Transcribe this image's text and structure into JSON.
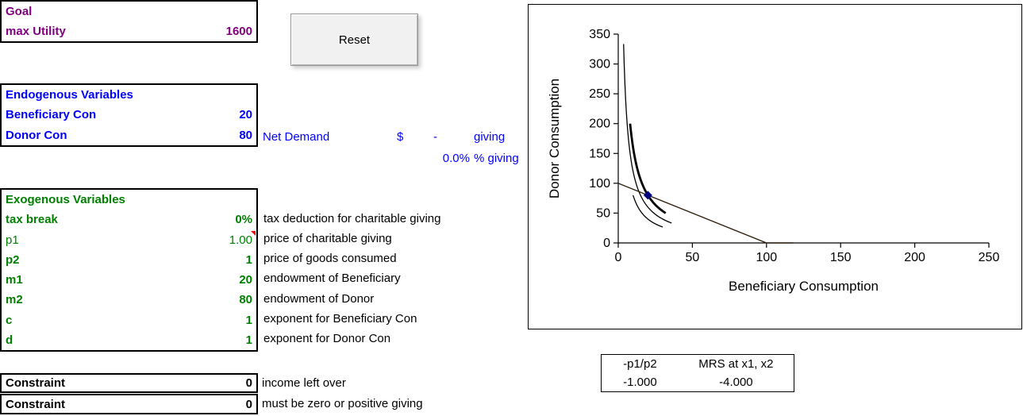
{
  "goal": {
    "header": "Goal",
    "row_label": "max Utility",
    "value": "1600"
  },
  "reset_button": {
    "label": "Reset"
  },
  "endogenous": {
    "header": "Endogenous Variables",
    "rows": [
      {
        "label": "Beneficiary Con",
        "value": "20"
      },
      {
        "label": "Donor Con",
        "value": "80"
      }
    ]
  },
  "net_demand": {
    "label": "Net Demand",
    "currency": "$",
    "value": "-",
    "unit": "giving",
    "pct_value": "0.0%",
    "pct_unit": "% giving"
  },
  "exogenous": {
    "header": "Exogenous Variables",
    "rows": [
      {
        "label": "tax break",
        "value": "0%",
        "desc": "tax deduction for charitable giving"
      },
      {
        "label": "p1",
        "value": "1.00",
        "desc": "price of charitable giving",
        "has_comment": true
      },
      {
        "label": "p2",
        "value": "1",
        "desc": "price of goods consumed"
      },
      {
        "label": "m1",
        "value": "20",
        "desc": "endowment of Beneficiary"
      },
      {
        "label": "m2",
        "value": "80",
        "desc": "endowment of Donor"
      },
      {
        "label": "c",
        "value": "1",
        "desc": "exponent for Beneficiary Con"
      },
      {
        "label": "d",
        "value": "1",
        "desc": "exponent for Donor Con"
      }
    ]
  },
  "constraints": [
    {
      "label": "Constraint",
      "value": "0",
      "desc": "income left over"
    },
    {
      "label": "Constraint",
      "value": "0",
      "desc": "must be zero or positive giving"
    }
  ],
  "chart_data": {
    "type": "line",
    "title": "",
    "xlabel": "Beneficiary Consumption",
    "ylabel": "Donor Consumption",
    "xlim": [
      0,
      250
    ],
    "ylim": [
      0,
      350
    ],
    "x_ticks": [
      0,
      50,
      100,
      150,
      200,
      250
    ],
    "y_ticks": [
      0,
      50,
      100,
      150,
      200,
      250,
      300,
      350
    ],
    "grid": false,
    "legend": false,
    "series": [
      {
        "name": "indifference-curve-high",
        "kind": "hyperbola",
        "utility": 1200,
        "x_range": [
          3.6,
          36
        ],
        "style": "thin"
      },
      {
        "name": "indifference-curve-optimal",
        "kind": "hyperbola",
        "utility": 1600,
        "x_range": [
          8,
          32
        ],
        "style": "thick"
      },
      {
        "name": "indifference-curve-low",
        "kind": "hyperbola",
        "utility": 800,
        "x_range": [
          10,
          30
        ],
        "style": "thin"
      },
      {
        "name": "budget-line",
        "kind": "polyline",
        "points": [
          [
            0,
            100
          ],
          [
            100,
            0
          ],
          [
            118,
            0
          ]
        ]
      },
      {
        "name": "endowment-point",
        "kind": "marker",
        "marker": "diamond",
        "point": [
          20,
          80
        ],
        "color": "#000080"
      }
    ]
  },
  "mrs_table": {
    "headers": [
      "-p1/p2",
      "MRS at x1, x2"
    ],
    "values": [
      "-1.000",
      "-4.000"
    ]
  },
  "colors": {
    "goal_text": "#800080",
    "endogenous_text": "#0000FF",
    "exogenous_text": "#008000",
    "constraint_text": "#000000",
    "marker": "#000080",
    "comment_indicator": "#FF0000",
    "curve": "#000000"
  }
}
